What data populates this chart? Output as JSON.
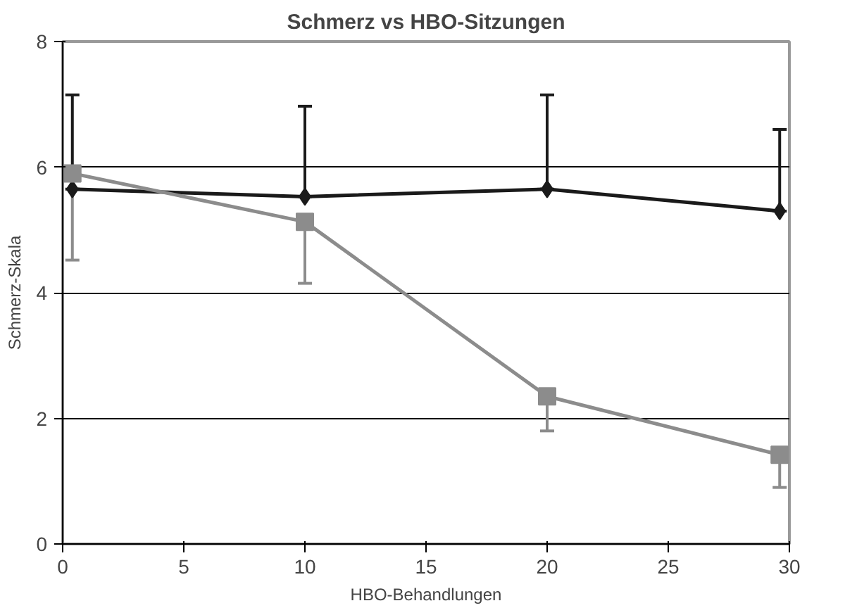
{
  "chart_data": {
    "type": "line",
    "title": "Schmerz vs HBO-Sitzungen",
    "xlabel": "HBO-Behandlungen",
    "ylabel": "Schmerz-Skala",
    "xlim": [
      0,
      30
    ],
    "xticks": [
      0,
      5,
      10,
      15,
      20,
      25,
      30
    ],
    "ylim": [
      0,
      8
    ],
    "yticks": [
      0,
      2,
      4,
      6,
      8
    ],
    "grid": "y",
    "line_style": "solid",
    "series": [
      {
        "color": "#1a1a1a",
        "marker": "diamond",
        "x": [
          0.4,
          10,
          20,
          29.6
        ],
        "values": [
          5.65,
          5.53,
          5.65,
          5.3
        ],
        "errors": [
          [
            5.65,
            7.15
          ],
          [
            5.53,
            6.97
          ],
          [
            5.65,
            7.15
          ],
          [
            5.3,
            6.6
          ]
        ]
      },
      {
        "color": "#8c8c8c",
        "marker": "square",
        "x": [
          0.4,
          10,
          20,
          29.6
        ],
        "values": [
          5.9,
          5.13,
          2.35,
          1.42
        ],
        "errors": [
          [
            4.52,
            5.9
          ],
          [
            4.15,
            5.13
          ],
          [
            1.8,
            2.35
          ],
          [
            0.9,
            1.42
          ]
        ]
      }
    ]
  }
}
